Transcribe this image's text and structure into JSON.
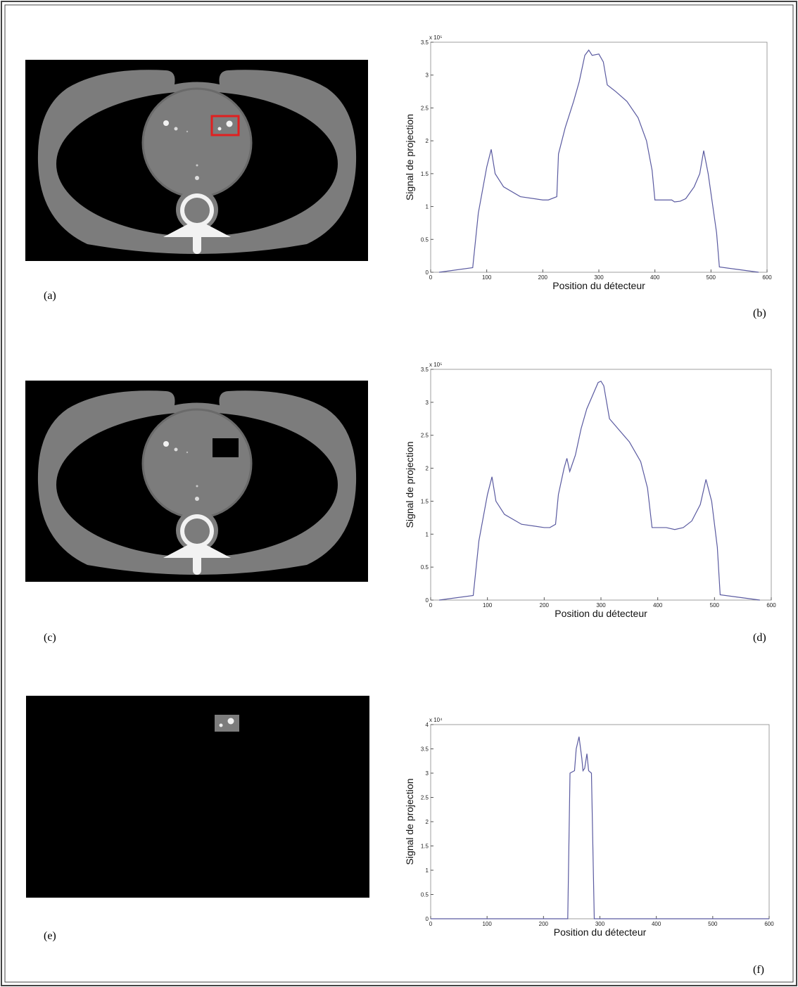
{
  "panel_labels": [
    "(a)",
    "(b)",
    "(c)",
    "(d)",
    "(e)",
    "(f)"
  ],
  "chart_data": [
    {
      "type": "line",
      "x_label": "Position du détecteur",
      "y_label": "Signal de projection",
      "y_multiplier": "x 10⁵",
      "xlim": [
        0,
        600
      ],
      "xticks": [
        0,
        100,
        200,
        300,
        400,
        500,
        600
      ],
      "ylim": [
        0,
        3.5
      ],
      "yticks": [
        0,
        0.5,
        1,
        1.5,
        2,
        2.5,
        3,
        3.5
      ],
      "x": [
        15,
        75,
        85,
        100,
        108,
        115,
        130,
        160,
        200,
        210,
        225,
        228,
        240,
        255,
        265,
        275,
        282,
        288,
        300,
        308,
        315,
        330,
        350,
        370,
        385,
        395,
        400,
        430,
        435,
        445,
        455,
        470,
        480,
        487,
        495,
        510,
        515,
        550,
        585
      ],
      "series": [
        {
          "color": "#5a5aa0",
          "values": [
            0,
            0.07,
            0.9,
            1.6,
            1.87,
            1.5,
            1.3,
            1.15,
            1.1,
            1.1,
            1.15,
            1.8,
            2.2,
            2.6,
            2.9,
            3.3,
            3.38,
            3.3,
            3.32,
            3.2,
            2.85,
            2.75,
            2.6,
            2.35,
            2.0,
            1.55,
            1.1,
            1.1,
            1.07,
            1.08,
            1.12,
            1.3,
            1.5,
            1.85,
            1.5,
            0.6,
            0.08,
            0.04,
            0
          ]
        }
      ]
    },
    {
      "type": "line",
      "x_label": "Position du détecteur",
      "y_label": "Signal de projection",
      "y_multiplier": "x 10⁵",
      "xlim": [
        0,
        600
      ],
      "xticks": [
        0,
        100,
        200,
        300,
        400,
        500,
        600
      ],
      "ylim": [
        0,
        3.5
      ],
      "yticks": [
        0,
        0.5,
        1,
        1.5,
        2,
        2.5,
        3,
        3.5
      ],
      "x": [
        15,
        75,
        85,
        100,
        108,
        115,
        130,
        160,
        200,
        210,
        220,
        225,
        235,
        240,
        245,
        255,
        265,
        275,
        285,
        295,
        300,
        305,
        310,
        315,
        330,
        350,
        370,
        382,
        390,
        415,
        430,
        445,
        460,
        475,
        485,
        495,
        505,
        510,
        545,
        580
      ],
      "series": [
        {
          "color": "#5a5aa0",
          "values": [
            0,
            0.07,
            0.9,
            1.6,
            1.87,
            1.5,
            1.3,
            1.15,
            1.1,
            1.1,
            1.15,
            1.6,
            2.0,
            2.15,
            1.95,
            2.2,
            2.6,
            2.9,
            3.1,
            3.3,
            3.32,
            3.25,
            3.0,
            2.75,
            2.6,
            2.4,
            2.1,
            1.7,
            1.1,
            1.1,
            1.07,
            1.1,
            1.2,
            1.45,
            1.83,
            1.5,
            0.8,
            0.08,
            0.04,
            0
          ]
        }
      ]
    },
    {
      "type": "line",
      "x_label": "Position du détecteur",
      "y_label": "Signal de projection",
      "y_multiplier": "x 10⁴",
      "xlim": [
        0,
        600
      ],
      "xticks": [
        0,
        100,
        200,
        300,
        400,
        500,
        600
      ],
      "ylim": [
        0,
        4
      ],
      "yticks": [
        0,
        0.5,
        1,
        1.5,
        2,
        2.5,
        3,
        3.5,
        4
      ],
      "x": [
        0,
        243,
        247,
        255,
        258,
        263,
        268,
        270,
        273,
        277,
        280,
        285,
        290,
        600
      ],
      "series": [
        {
          "color": "#5a5aa0",
          "values": [
            0,
            0,
            3.0,
            3.05,
            3.5,
            3.75,
            3.3,
            3.05,
            3.1,
            3.4,
            3.05,
            3.0,
            0,
            0
          ]
        }
      ]
    }
  ]
}
